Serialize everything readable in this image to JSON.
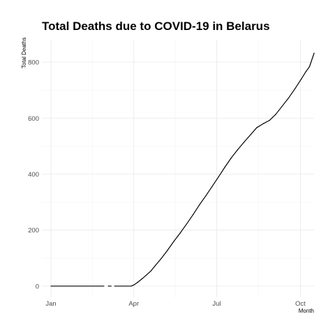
{
  "chart_data": {
    "type": "line",
    "title": "Total Deaths due to COVID-19 in Belarus",
    "xlabel": "Month",
    "ylabel": "Total Deaths",
    "x_tick_labels": [
      "Jan",
      "Apr",
      "Jul",
      "Oct"
    ],
    "x_tick_dates": [
      "2020-01-01",
      "2020-04-01",
      "2020-07-01",
      "2020-10-01"
    ],
    "y_ticks": [
      0,
      200,
      400,
      600,
      800
    ],
    "xlim": [
      "2019-12-22",
      "2020-10-16"
    ],
    "ylim": [
      -40,
      880
    ],
    "grid": true,
    "legend": "none",
    "series": [
      {
        "color": "#000000",
        "segments": [
          [
            {
              "x": "2020-01-01",
              "y": 0
            },
            {
              "x": "2020-02-28",
              "y": 0
            }
          ],
          [
            {
              "x": "2020-03-04",
              "y": 0
            },
            {
              "x": "2020-03-07",
              "y": 0
            }
          ],
          [
            {
              "x": "2020-03-11",
              "y": 0
            },
            {
              "x": "2020-03-29",
              "y": 0
            },
            {
              "x": "2020-04-01",
              "y": 4
            },
            {
              "x": "2020-04-05",
              "y": 13
            },
            {
              "x": "2020-04-10",
              "y": 26
            },
            {
              "x": "2020-04-15",
              "y": 40
            },
            {
              "x": "2020-04-20",
              "y": 55
            },
            {
              "x": "2020-04-25",
              "y": 75
            },
            {
              "x": "2020-05-01",
              "y": 98
            },
            {
              "x": "2020-05-08",
              "y": 128
            },
            {
              "x": "2020-05-15",
              "y": 160
            },
            {
              "x": "2020-05-22",
              "y": 190
            },
            {
              "x": "2020-05-29",
              "y": 222
            },
            {
              "x": "2020-06-05",
              "y": 255
            },
            {
              "x": "2020-06-12",
              "y": 290
            },
            {
              "x": "2020-06-19",
              "y": 322
            },
            {
              "x": "2020-06-26",
              "y": 356
            },
            {
              "x": "2020-07-03",
              "y": 390
            },
            {
              "x": "2020-07-10",
              "y": 425
            },
            {
              "x": "2020-07-17",
              "y": 458
            },
            {
              "x": "2020-07-24",
              "y": 487
            },
            {
              "x": "2020-07-31",
              "y": 514
            },
            {
              "x": "2020-08-07",
              "y": 540
            },
            {
              "x": "2020-08-14",
              "y": 566
            },
            {
              "x": "2020-08-21",
              "y": 580
            },
            {
              "x": "2020-08-28",
              "y": 592
            },
            {
              "x": "2020-09-04",
              "y": 614
            },
            {
              "x": "2020-09-11",
              "y": 643
            },
            {
              "x": "2020-09-18",
              "y": 672
            },
            {
              "x": "2020-09-25",
              "y": 705
            },
            {
              "x": "2020-10-02",
              "y": 740
            },
            {
              "x": "2020-10-07",
              "y": 766
            },
            {
              "x": "2020-10-11",
              "y": 784
            },
            {
              "x": "2020-10-16",
              "y": 832
            }
          ]
        ]
      }
    ]
  }
}
